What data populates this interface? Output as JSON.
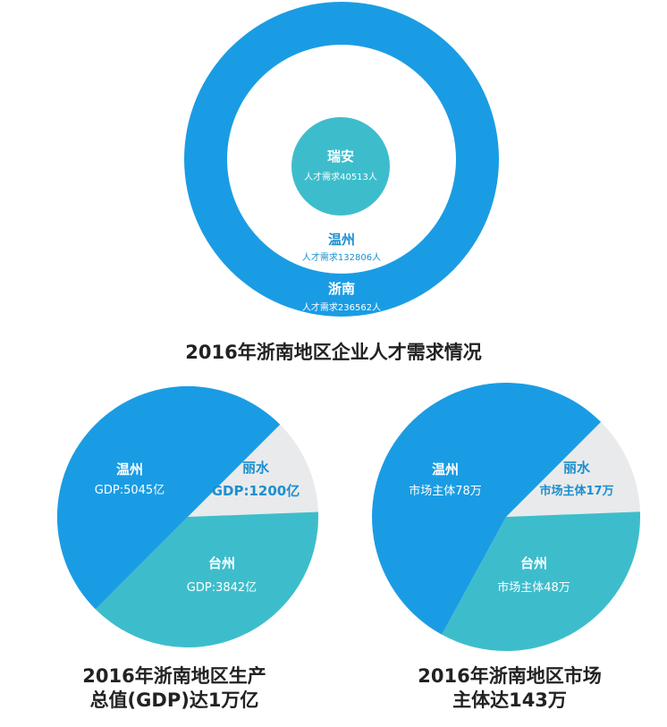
{
  "colors": {
    "blue": "#1a9ce4",
    "teal": "#3dbdcc",
    "gray": "#e9eaeb",
    "white": "#ffffff",
    "dark_text": "#1a8fd0",
    "title_text": "#222222"
  },
  "chart_data": [
    {
      "type": "nested-circles",
      "title": "2016年浙南地区企业人才需求情况",
      "series": [
        {
          "name": "瑞安",
          "label": "人才需求40513人",
          "value": 40513
        },
        {
          "name": "温州",
          "label": "人才需求132806人",
          "value": 132806
        },
        {
          "name": "浙南",
          "label": "人才需求236562人",
          "value": 236562
        }
      ]
    },
    {
      "type": "pie",
      "title_lines": [
        "2016年浙南地区生产",
        "总值(GDP)达1万亿"
      ],
      "slices": [
        {
          "name": "温州",
          "label": "GDP:5045亿",
          "value": 5045
        },
        {
          "name": "丽水",
          "label": "GDP:1200亿",
          "value": 1200
        },
        {
          "name": "台州",
          "label": "GDP:3842亿",
          "value": 3842
        }
      ]
    },
    {
      "type": "pie",
      "title_lines": [
        "2016年浙南地区市场",
        "主体达143万"
      ],
      "slices": [
        {
          "name": "温州",
          "label": "市场主体78万",
          "value": 78
        },
        {
          "name": "丽水",
          "label": "市场主体17万",
          "value": 17
        },
        {
          "name": "台州",
          "label": "市场主体48万",
          "value": 48
        }
      ]
    }
  ]
}
